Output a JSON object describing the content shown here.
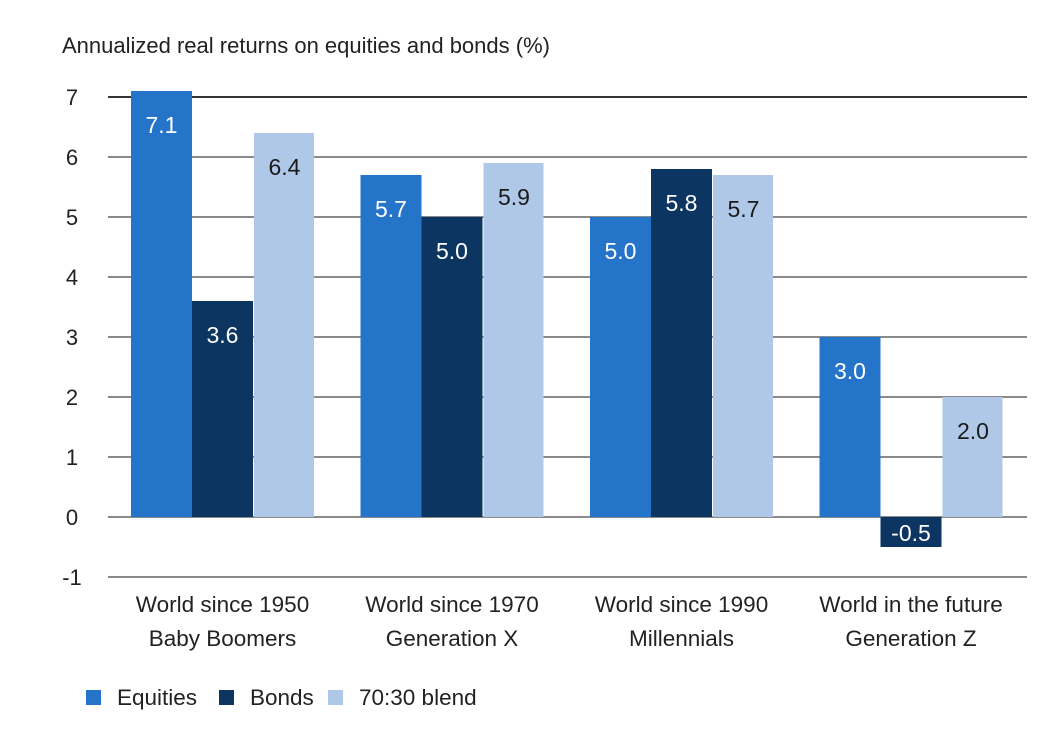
{
  "chart_data": {
    "type": "bar",
    "title": "Annualized real returns on equities and bonds (%)",
    "xlabel": "",
    "ylabel": "",
    "ylim": [
      -1,
      7
    ],
    "yticks": [
      7,
      6,
      5,
      4,
      3,
      2,
      1,
      0,
      -1
    ],
    "grid": true,
    "legend_position": "bottom-left",
    "categories": [
      [
        "World since 1950",
        "Baby Boomers"
      ],
      [
        "World since 1970",
        "Generation X"
      ],
      [
        "World since 1990",
        "Millennials"
      ],
      [
        "World in the future",
        "Generation Z"
      ]
    ],
    "series": [
      {
        "name": "Equities",
        "color": "#2474C9",
        "label_color": "#ffffff",
        "values": [
          7.1,
          5.7,
          5.0,
          3.0
        ],
        "labels": [
          "7.1",
          "5.7",
          "5.0",
          "3.0"
        ]
      },
      {
        "name": "Bonds",
        "color": "#0D3562",
        "label_color": "#ffffff",
        "values": [
          3.6,
          5.0,
          5.8,
          -0.5
        ],
        "labels": [
          "3.6",
          "5.0",
          "5.8",
          "-0.5"
        ]
      },
      {
        "name": "70:30 blend",
        "color": "#AFC8E8",
        "label_color": "#1a1a1a",
        "values": [
          6.4,
          5.9,
          5.7,
          2.0
        ],
        "labels": [
          "6.4",
          "5.9",
          "5.7",
          "2.0"
        ]
      }
    ]
  }
}
